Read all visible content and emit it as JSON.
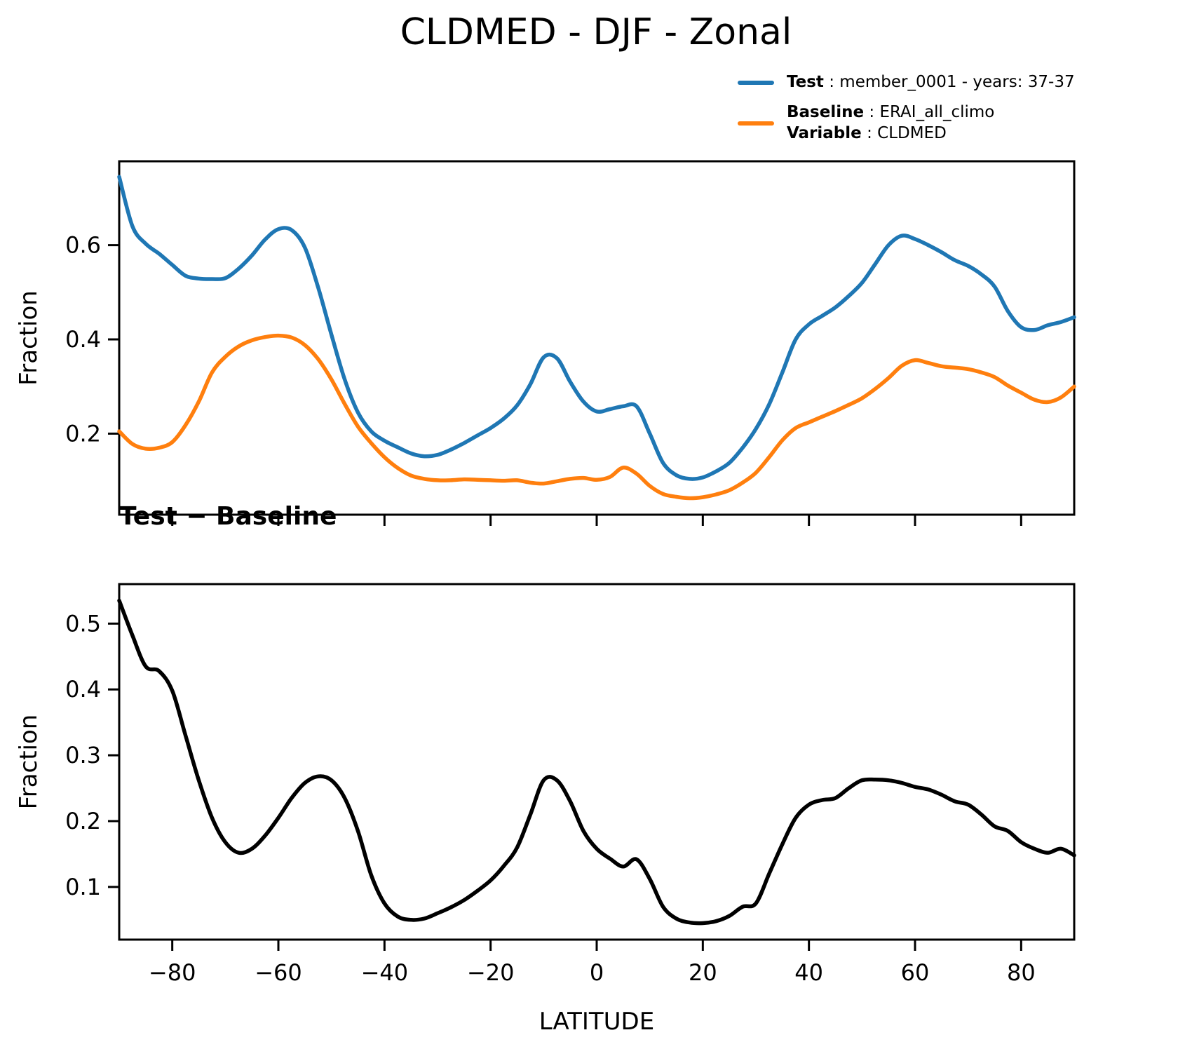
{
  "title": "CLDMED - DJF - Zonal",
  "legend": {
    "test_label": "Test",
    "test_desc": " : member_0001 - years: 37-37",
    "baseline_label": "Baseline",
    "baseline_desc": " : ERAI_all_climo",
    "variable_label": "Variable",
    "variable_desc": " : CLDMED",
    "test_color": "#1f77b4",
    "baseline_color": "#ff7f0e"
  },
  "subplot2_title": "Test − Baseline",
  "chart_data": [
    {
      "type": "line",
      "title": "CLDMED - DJF - Zonal",
      "xlabel": "",
      "ylabel": "Fraction",
      "xlim": [
        -90,
        90
      ],
      "ylim": [
        0.028,
        0.778
      ],
      "yticks": [
        0.2,
        0.4,
        0.6
      ],
      "xticks": [
        -80,
        -60,
        -40,
        -20,
        0,
        20,
        40,
        60,
        80
      ],
      "show_xtick_labels": false,
      "grid": false,
      "legend_position": "above-right",
      "x": [
        -90,
        -87.5,
        -85,
        -82.5,
        -80,
        -77.5,
        -75,
        -72.5,
        -70,
        -67.5,
        -65,
        -62.5,
        -60,
        -57.5,
        -55,
        -52.5,
        -50,
        -47.5,
        -45,
        -42.5,
        -40,
        -37.5,
        -35,
        -32.5,
        -30,
        -27.5,
        -25,
        -22.5,
        -20,
        -17.5,
        -15,
        -12.5,
        -10,
        -7.5,
        -5,
        -2.5,
        0,
        2.5,
        5,
        7.5,
        10,
        12.5,
        15,
        17.5,
        20,
        22.5,
        25,
        27.5,
        30,
        32.5,
        35,
        37.5,
        40,
        42.5,
        45,
        47.5,
        50,
        52.5,
        55,
        57.5,
        60,
        62.5,
        65,
        67.5,
        70,
        72.5,
        75,
        77.5,
        80,
        82.5,
        85,
        87.5,
        90
      ],
      "series": [
        {
          "name": "Test : member_0001 - years: 37-37",
          "color": "#1f77b4",
          "values": [
            0.745,
            0.64,
            0.603,
            0.582,
            0.558,
            0.535,
            0.529,
            0.528,
            0.53,
            0.55,
            0.578,
            0.612,
            0.634,
            0.632,
            0.595,
            0.51,
            0.41,
            0.315,
            0.245,
            0.205,
            0.185,
            0.171,
            0.158,
            0.152,
            0.155,
            0.166,
            0.18,
            0.196,
            0.212,
            0.232,
            0.26,
            0.305,
            0.362,
            0.36,
            0.31,
            0.268,
            0.247,
            0.252,
            0.258,
            0.258,
            0.2,
            0.138,
            0.112,
            0.104,
            0.107,
            0.12,
            0.138,
            0.17,
            0.21,
            0.262,
            0.33,
            0.4,
            0.432,
            0.45,
            0.468,
            0.492,
            0.52,
            0.56,
            0.6,
            0.62,
            0.613,
            0.6,
            0.585,
            0.568,
            0.556,
            0.538,
            0.512,
            0.46,
            0.426,
            0.42,
            0.43,
            0.437,
            0.447
          ]
        },
        {
          "name": "Baseline : ERAI_all_climo  Variable : CLDMED",
          "color": "#ff7f0e",
          "values": [
            0.205,
            0.178,
            0.168,
            0.17,
            0.182,
            0.218,
            0.268,
            0.33,
            0.363,
            0.385,
            0.398,
            0.405,
            0.408,
            0.404,
            0.388,
            0.358,
            0.315,
            0.263,
            0.215,
            0.18,
            0.15,
            0.127,
            0.111,
            0.104,
            0.101,
            0.101,
            0.103,
            0.102,
            0.101,
            0.1,
            0.101,
            0.096,
            0.094,
            0.099,
            0.104,
            0.106,
            0.102,
            0.108,
            0.128,
            0.115,
            0.089,
            0.072,
            0.066,
            0.063,
            0.065,
            0.071,
            0.08,
            0.096,
            0.117,
            0.15,
            0.186,
            0.212,
            0.224,
            0.236,
            0.248,
            0.261,
            0.275,
            0.295,
            0.318,
            0.344,
            0.356,
            0.35,
            0.343,
            0.34,
            0.337,
            0.33,
            0.32,
            0.302,
            0.287,
            0.272,
            0.267,
            0.277,
            0.3
          ]
        }
      ]
    },
    {
      "type": "line",
      "title": "Test − Baseline",
      "xlabel": "LATITUDE",
      "ylabel": "Fraction",
      "xlim": [
        -90,
        90
      ],
      "ylim": [
        0.02,
        0.56
      ],
      "yticks": [
        0.1,
        0.2,
        0.3,
        0.4,
        0.5
      ],
      "xticks": [
        -80,
        -60,
        -40,
        -20,
        0,
        20,
        40,
        60,
        80
      ],
      "show_xtick_labels": true,
      "grid": false,
      "x": [
        -90,
        -87.5,
        -85,
        -82.5,
        -80,
        -77.5,
        -75,
        -72.5,
        -70,
        -67.5,
        -65,
        -62.5,
        -60,
        -57.5,
        -55,
        -52.5,
        -50,
        -47.5,
        -45,
        -42.5,
        -40,
        -37.5,
        -35,
        -32.5,
        -30,
        -27.5,
        -25,
        -22.5,
        -20,
        -17.5,
        -15,
        -12.5,
        -10,
        -7.5,
        -5,
        -2.5,
        0,
        2.5,
        5,
        7.5,
        10,
        12.5,
        15,
        17.5,
        20,
        22.5,
        25,
        27.5,
        30,
        32.5,
        35,
        37.5,
        40,
        42.5,
        45,
        47.5,
        50,
        52.5,
        55,
        57.5,
        60,
        62.5,
        65,
        67.5,
        70,
        72.5,
        75,
        77.5,
        80,
        82.5,
        85,
        87.5,
        90
      ],
      "series": [
        {
          "name": "Test − Baseline",
          "color": "#000000",
          "values": [
            0.535,
            0.482,
            0.435,
            0.428,
            0.398,
            0.33,
            0.262,
            0.205,
            0.168,
            0.152,
            0.158,
            0.178,
            0.205,
            0.235,
            0.258,
            0.268,
            0.262,
            0.235,
            0.185,
            0.118,
            0.075,
            0.055,
            0.05,
            0.052,
            0.06,
            0.069,
            0.08,
            0.094,
            0.11,
            0.132,
            0.16,
            0.21,
            0.262,
            0.262,
            0.23,
            0.185,
            0.158,
            0.143,
            0.131,
            0.142,
            0.112,
            0.07,
            0.052,
            0.046,
            0.045,
            0.048,
            0.056,
            0.07,
            0.075,
            0.12,
            0.165,
            0.205,
            0.225,
            0.232,
            0.235,
            0.25,
            0.262,
            0.263,
            0.262,
            0.258,
            0.252,
            0.248,
            0.24,
            0.23,
            0.225,
            0.21,
            0.192,
            0.185,
            0.168,
            0.158,
            0.152,
            0.158,
            0.148
          ]
        }
      ]
    }
  ]
}
